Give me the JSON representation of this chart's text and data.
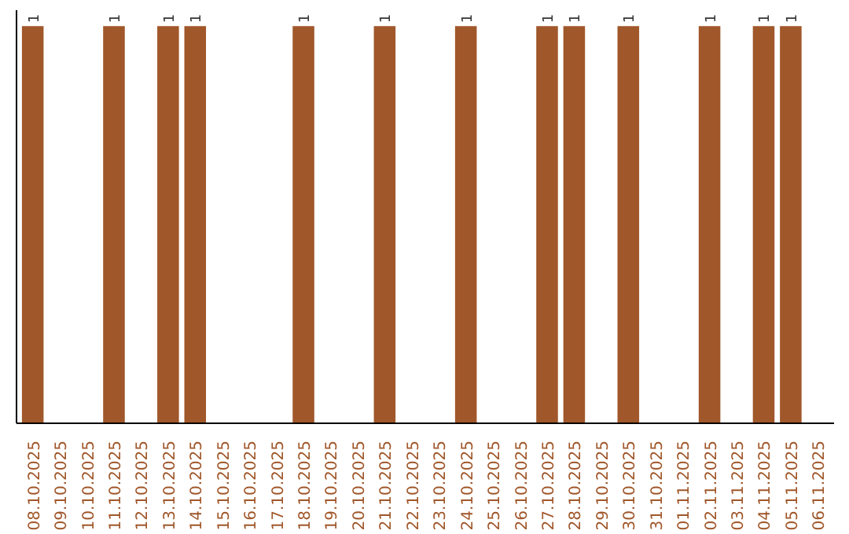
{
  "chart_data": {
    "type": "bar",
    "categories": [
      "08.10.2025",
      "09.10.2025",
      "10.10.2025",
      "11.10.2025",
      "12.10.2025",
      "13.10.2025",
      "14.10.2025",
      "15.10.2025",
      "16.10.2025",
      "17.10.2025",
      "18.10.2025",
      "19.10.2025",
      "20.10.2025",
      "21.10.2025",
      "22.10.2025",
      "23.10.2025",
      "24.10.2025",
      "25.10.2025",
      "26.10.2025",
      "27.10.2025",
      "28.10.2025",
      "29.10.2025",
      "30.10.2025",
      "31.10.2025",
      "01.11.2025",
      "02.11.2025",
      "03.11.2025",
      "04.11.2025",
      "05.11.2025",
      "06.11.2025"
    ],
    "values": [
      1,
      null,
      null,
      1,
      null,
      1,
      1,
      null,
      null,
      null,
      1,
      null,
      null,
      1,
      null,
      null,
      1,
      null,
      null,
      1,
      1,
      null,
      1,
      null,
      null,
      1,
      null,
      1,
      1,
      null
    ],
    "color": "#a0572a",
    "data_labels": true,
    "grid": false
  }
}
